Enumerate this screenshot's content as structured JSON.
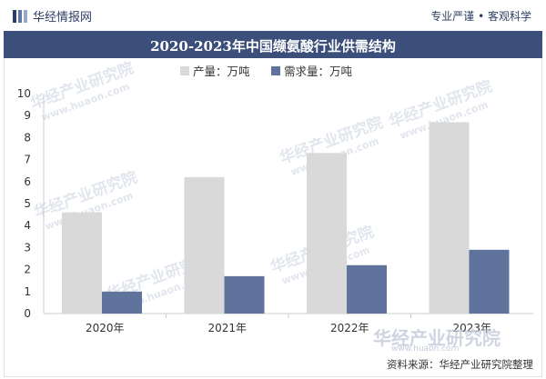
{
  "header": {
    "brand_name": "华经情报网",
    "slogan": "专业严谨 • 客观科学"
  },
  "chart_data": {
    "type": "bar",
    "title": "2020-2023年中国缬氨酸行业供需结构",
    "categories": [
      "2020年",
      "2021年",
      "2022年",
      "2023年"
    ],
    "series": [
      {
        "name": "产量：万吨",
        "values": [
          4.6,
          6.2,
          7.3,
          8.7
        ],
        "color": "#d9d9d9"
      },
      {
        "name": "需求量：万吨",
        "values": [
          1.0,
          1.7,
          2.2,
          2.9
        ],
        "color": "#5f739c"
      }
    ],
    "ylim": [
      0,
      10
    ],
    "yticks": [
      "0",
      "1",
      "2",
      "3",
      "4",
      "5",
      "6",
      "7",
      "8",
      "9",
      "10"
    ],
    "grid": false,
    "legend_position": "top-left"
  },
  "watermark": {
    "text": "华经产业研究院",
    "url": "www.huaon.com"
  },
  "footer": {
    "source": "资料来源：华经产业研究院整理",
    "logo_text": "华经产业研究院",
    "logo_url": "www.huaon.com"
  }
}
